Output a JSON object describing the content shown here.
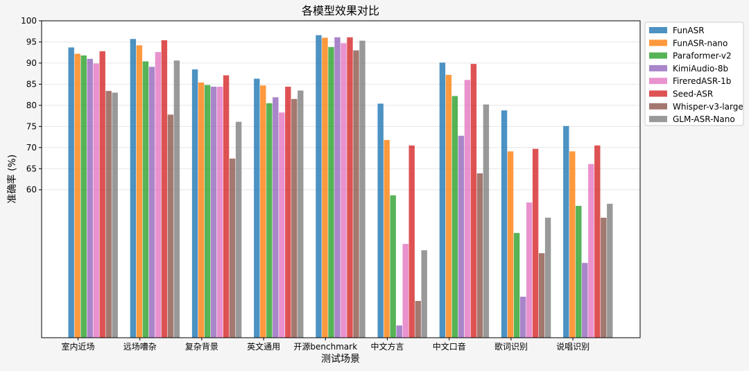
{
  "chart_data": {
    "type": "bar",
    "title": "各模型效果对比",
    "xlabel": "测试场景",
    "ylabel": "准确率 (%)",
    "ylim": [
      25,
      100
    ],
    "yticks": [
      60,
      65,
      70,
      75,
      80,
      85,
      90,
      95,
      100
    ],
    "grid": "y",
    "legend_position": "outside-top-right",
    "categories": [
      "室内近场",
      "远场嘈杂",
      "复杂背景",
      "英文通用",
      "开源benchmark",
      "中文方言",
      "中文口音",
      "歌词识别",
      "说唱识别"
    ],
    "series": [
      {
        "name": "FunASR",
        "color": "#1f77b4",
        "values": [
          93.7,
          95.7,
          88.5,
          86.3,
          96.6,
          80.4,
          90.1,
          78.8,
          75.1
        ]
      },
      {
        "name": "FunASR-nano",
        "color": "#ff7f0e",
        "values": [
          92.2,
          94.2,
          85.4,
          84.7,
          96.0,
          71.8,
          87.2,
          69.1,
          69.1
        ]
      },
      {
        "name": "Paraformer-v2",
        "color": "#2ca02c",
        "values": [
          91.8,
          90.4,
          84.8,
          80.5,
          93.8,
          58.7,
          82.2,
          49.8,
          56.2
        ]
      },
      {
        "name": "KimiAudio-8b",
        "color": "#9467bd",
        "values": [
          91.0,
          89.1,
          84.4,
          81.9,
          96.1,
          27.9,
          72.8,
          34.7,
          42.7
        ]
      },
      {
        "name": "FireredASR-1b",
        "color": "#e377c2",
        "values": [
          89.9,
          92.6,
          84.4,
          78.3,
          94.7,
          47.2,
          86.0,
          57.0,
          66.1
        ]
      },
      {
        "name": "Seed-ASR",
        "color": "#d62728",
        "values": [
          92.8,
          95.4,
          87.1,
          84.4,
          96.1,
          70.5,
          89.8,
          69.7,
          70.5
        ]
      },
      {
        "name": "Whisper-v3-large",
        "color": "#8c564b",
        "values": [
          83.4,
          77.8,
          67.4,
          81.5,
          93.0,
          33.7,
          63.9,
          45.0,
          53.4
        ]
      },
      {
        "name": "GLM-ASR-Nano",
        "color": "#7f7f7f",
        "values": [
          83.0,
          90.6,
          76.1,
          83.5,
          95.3,
          45.7,
          80.2,
          53.4,
          56.7
        ]
      }
    ]
  }
}
